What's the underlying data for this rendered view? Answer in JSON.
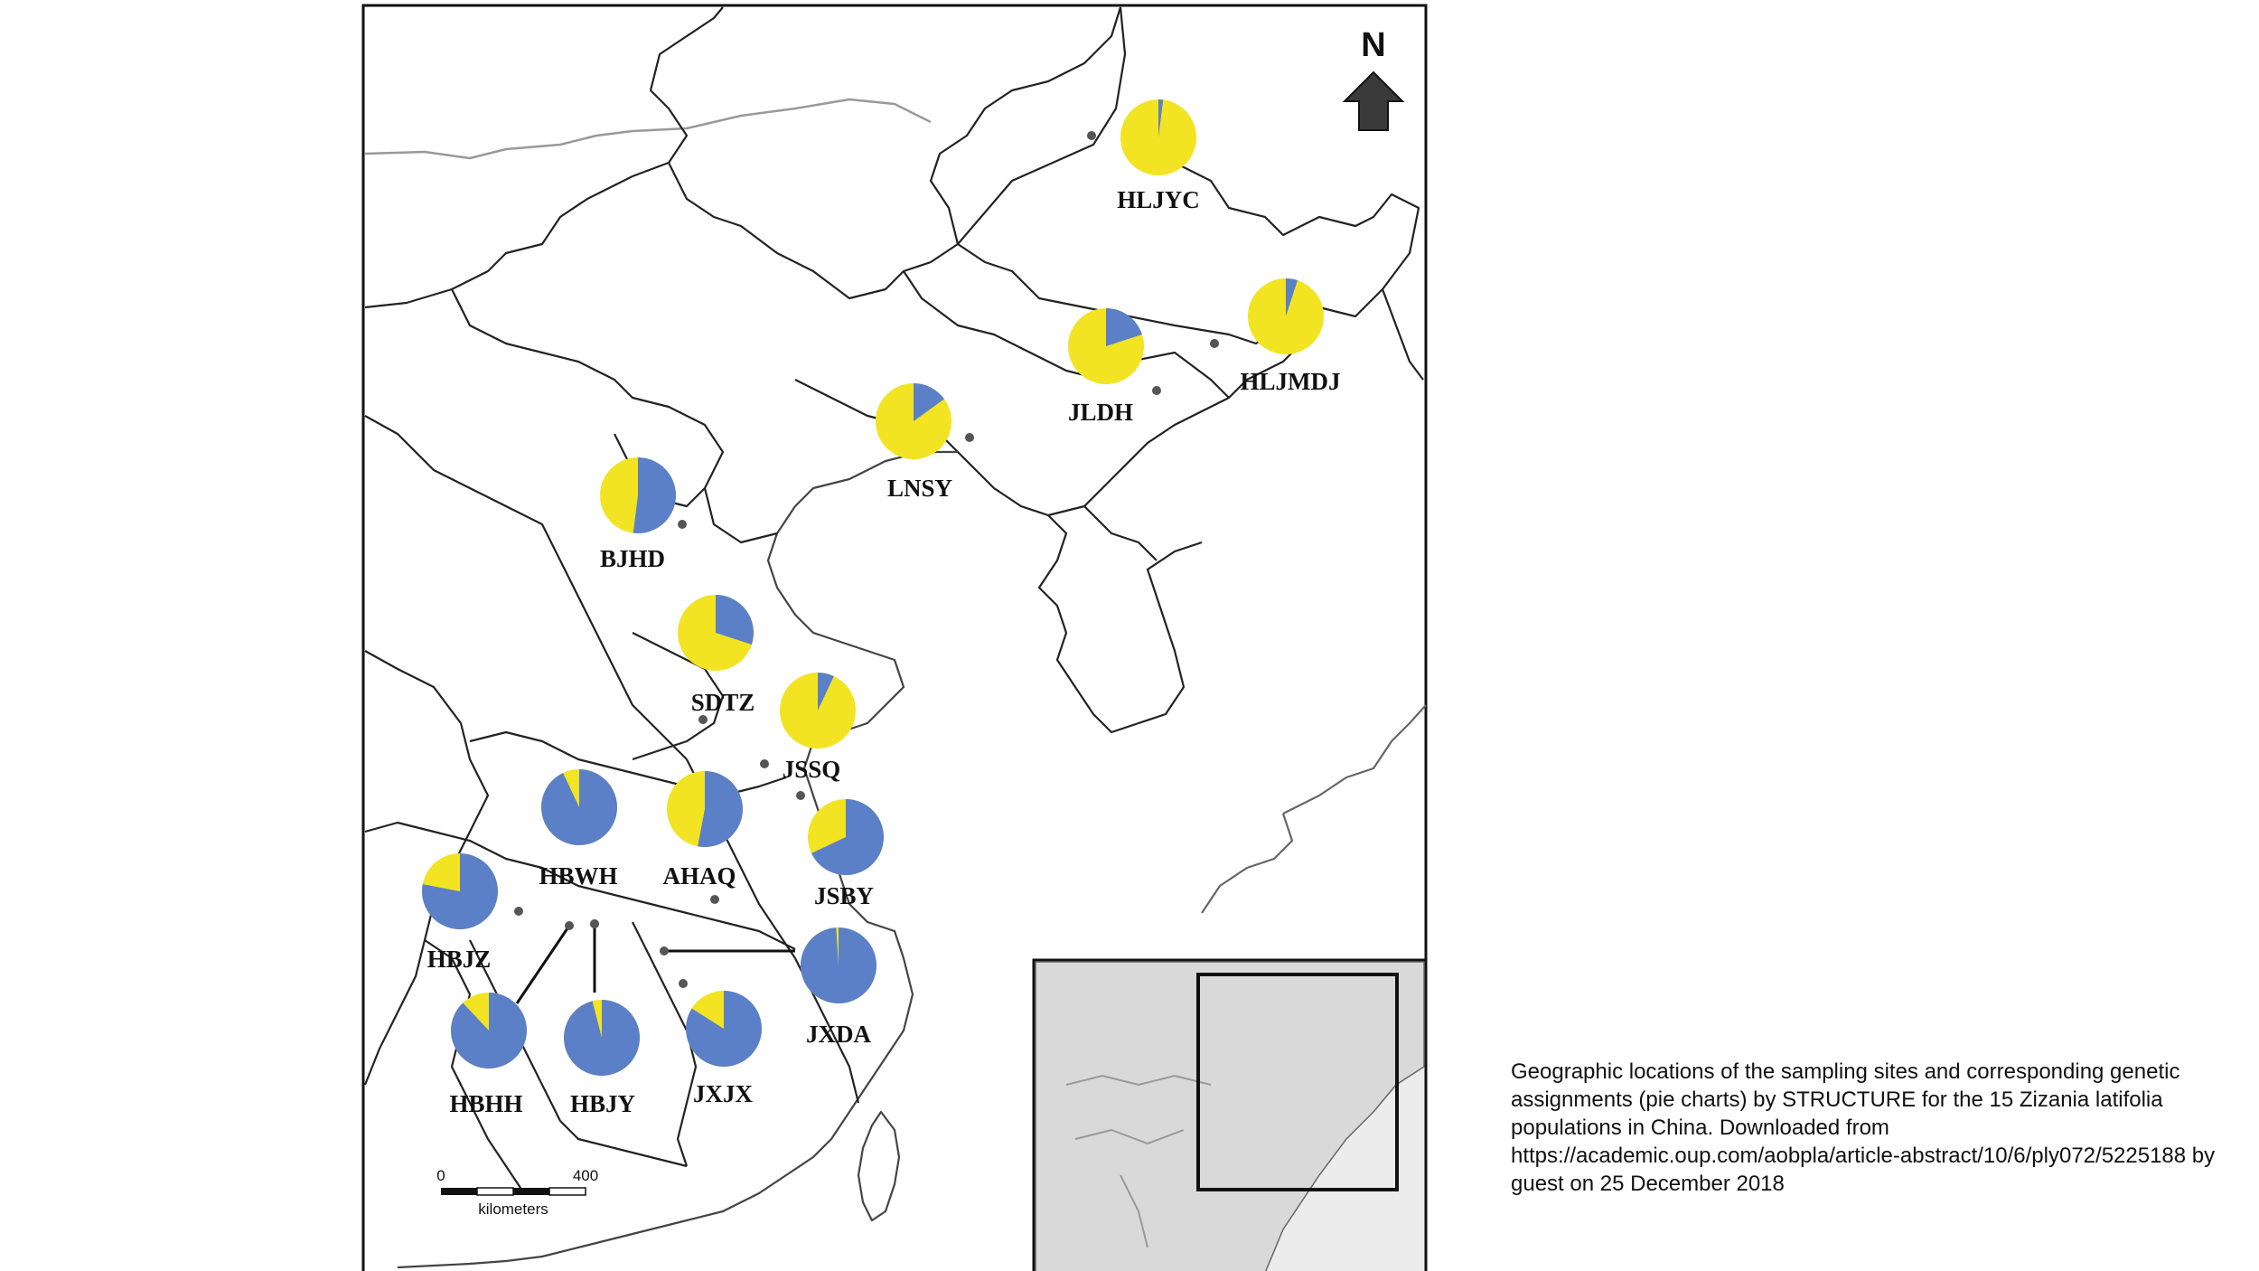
{
  "map": {
    "north_label": "N",
    "scale_bar": {
      "min_label": "0",
      "max_label": "400",
      "unit_label": "kilometers"
    },
    "legend_colors": {
      "cluster_1": "#f2e422",
      "cluster_2": "#5b80c7"
    },
    "site_marker_color": "#555555",
    "sites": [
      {
        "code": "HLJYC",
        "blue_fraction": 0.02
      },
      {
        "code": "HLJMDJ",
        "blue_fraction": 0.05
      },
      {
        "code": "JLDH",
        "blue_fraction": 0.2
      },
      {
        "code": "LNSY",
        "blue_fraction": 0.15
      },
      {
        "code": "BJHD",
        "blue_fraction": 0.52
      },
      {
        "code": "SDTZ",
        "blue_fraction": 0.3
      },
      {
        "code": "JSSQ",
        "blue_fraction": 0.07
      },
      {
        "code": "HBWH",
        "blue_fraction": 0.93
      },
      {
        "code": "AHAQ",
        "blue_fraction": 0.53
      },
      {
        "code": "JSBY",
        "blue_fraction": 0.68
      },
      {
        "code": "HBJZ",
        "blue_fraction": 0.78
      },
      {
        "code": "JXDA",
        "blue_fraction": 0.99
      },
      {
        "code": "HBHH",
        "blue_fraction": 0.88
      },
      {
        "code": "HBJY",
        "blue_fraction": 0.96
      },
      {
        "code": "JXJX",
        "blue_fraction": 0.84
      }
    ]
  },
  "caption": "Geographic locations of the sampling sites and corresponding genetic assignments (pie charts) by STRUCTURE for the 15 Zizania latifolia populations in China. Downloaded from https://academic.oup.com/aobpla/article-abstract/10/6/ply072/5225188 by guest on 25 December 2018"
}
